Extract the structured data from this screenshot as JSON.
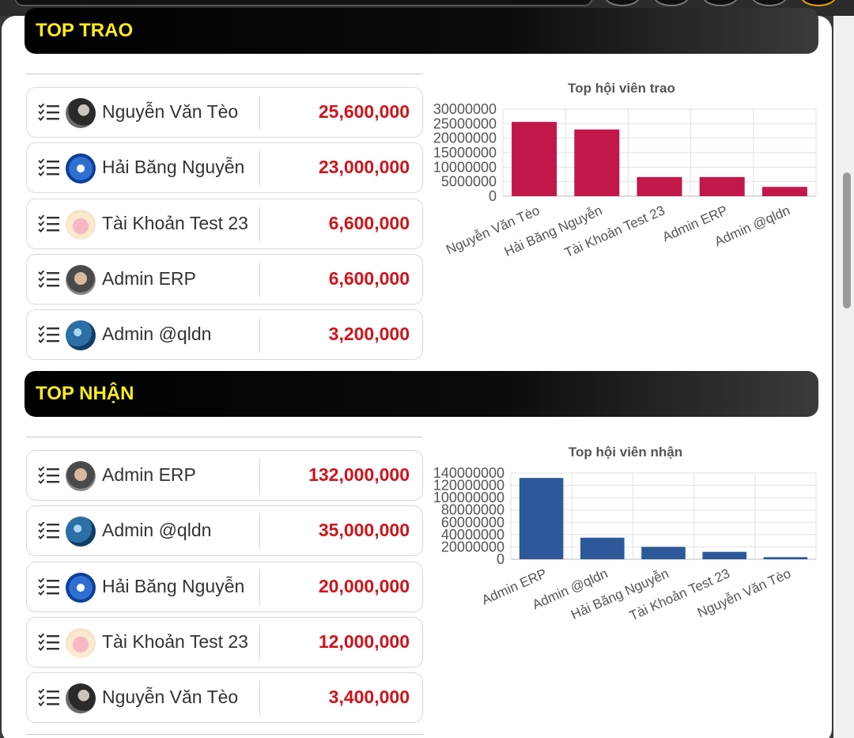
{
  "sections": [
    {
      "title": "TOP TRAO",
      "rows": [
        {
          "name": "Nguyễn Văn Tèo",
          "amount": "25,600,000",
          "avatar": "teo"
        },
        {
          "name": "Hải Băng Nguyễn",
          "amount": "23,000,000",
          "avatar": "bang"
        },
        {
          "name": "Tài Khoản Test 23",
          "amount": "6,600,000",
          "avatar": "test"
        },
        {
          "name": "Admin ERP",
          "amount": "6,600,000",
          "avatar": "erp"
        },
        {
          "name": "Admin @qldn",
          "amount": "3,200,000",
          "avatar": "qldn"
        }
      ]
    },
    {
      "title": "TOP NHẬN",
      "rows": [
        {
          "name": "Admin ERP",
          "amount": "132,000,000",
          "avatar": "erp"
        },
        {
          "name": "Admin @qldn",
          "amount": "35,000,000",
          "avatar": "qldn"
        },
        {
          "name": "Hải Băng Nguyễn",
          "amount": "20,000,000",
          "avatar": "bang"
        },
        {
          "name": "Tài Khoản Test 23",
          "amount": "12,000,000",
          "avatar": "test"
        },
        {
          "name": "Nguyễn Văn Tèo",
          "amount": "3,400,000",
          "avatar": "teo"
        }
      ]
    }
  ],
  "icons": {
    "row_icon": "checklist-icon",
    "avatar": "avatar"
  },
  "colors": {
    "header_text": "#ffeb1a",
    "amount": "#d0141a",
    "bar_trao": "#c2174a",
    "bar_nhan": "#2d5899"
  },
  "chart_data": [
    {
      "type": "bar",
      "title": "Top hội viên trao",
      "categories": [
        "Nguyễn Văn Tèo",
        "Hải Băng Nguyễn",
        "Tài Khoản Test 23",
        "Admin ERP",
        "Admin @qldn"
      ],
      "values": [
        25600000,
        23000000,
        6600000,
        6600000,
        3200000
      ],
      "ylim": [
        0,
        30000000
      ],
      "yticks": [
        "30000000",
        "25000000",
        "20000000",
        "15000000",
        "10000000",
        "5000000",
        "0"
      ],
      "grid": true,
      "color": "#c2174a"
    },
    {
      "type": "bar",
      "title": "Top hội viên nhận",
      "categories": [
        "Admin ERP",
        "Admin @qldn",
        "Hải Băng Nguyễn",
        "Tài Khoản Test 23",
        "Nguyễn Văn Tèo"
      ],
      "values": [
        132000000,
        35000000,
        20000000,
        12000000,
        3400000
      ],
      "ylim": [
        0,
        140000000
      ],
      "yticks": [
        "140000000",
        "120000000",
        "100000000",
        "80000000",
        "60000000",
        "40000000",
        "20000000",
        "0"
      ],
      "grid": true,
      "color": "#2d5899"
    }
  ]
}
